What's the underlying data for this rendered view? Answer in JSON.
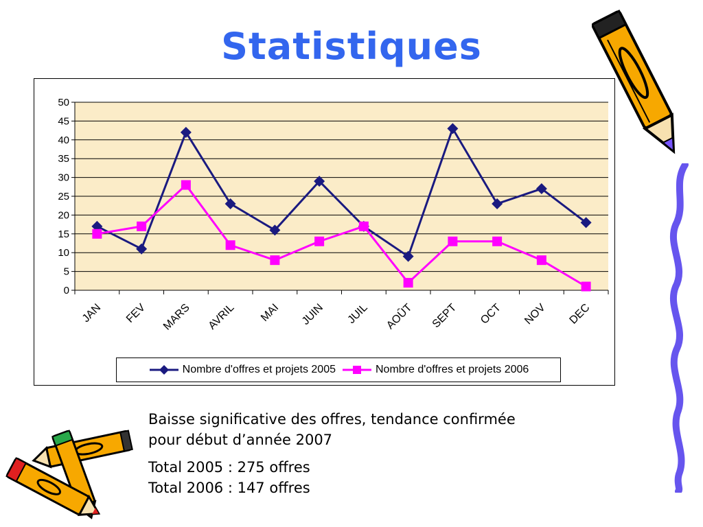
{
  "page": {
    "title": "Statistiques"
  },
  "chart_data": {
    "type": "line",
    "categories": [
      "JAN",
      "FEV",
      "MARS",
      "AVRIL",
      "MAI",
      "JUIN",
      "JUIL",
      "AOÛT",
      "SEPT",
      "OCT",
      "NOV",
      "DEC"
    ],
    "series": [
      {
        "name": "Nombre d'offres et projets 2005",
        "color": "#1a1a80",
        "marker": "diamond",
        "values": [
          17,
          11,
          42,
          23,
          16,
          29,
          17,
          9,
          43,
          23,
          27,
          18
        ]
      },
      {
        "name": "Nombre d'offres et projets 2006",
        "color": "#ff00ff",
        "marker": "square",
        "values": [
          15,
          17,
          28,
          12,
          8,
          13,
          17,
          2,
          13,
          13,
          8,
          1
        ]
      }
    ],
    "yticks": [
      "0",
      "5",
      "10",
      "15",
      "20",
      "25",
      "30",
      "35",
      "40",
      "45",
      "50"
    ],
    "ylim": [
      0,
      50
    ],
    "grid": true,
    "plot_background": "#fbecc8",
    "legend_position": "bottom"
  },
  "caption": {
    "line1": "Baisse significative des offres, tendance confirmée",
    "line2": "pour début d’année 2007",
    "total2005": "Total 2005 : 275 offres",
    "total2006": "Total 2006 : 147 offres"
  },
  "decorations": [
    "pencil-icon",
    "pencils-icon",
    "squiggle-border"
  ]
}
